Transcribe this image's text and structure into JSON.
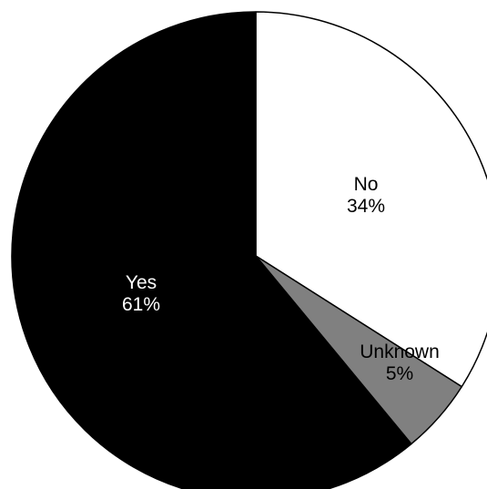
{
  "chart_data": {
    "type": "pie",
    "title": "",
    "start": "top",
    "direction": "clockwise",
    "slices": [
      {
        "label": "No",
        "value": 34,
        "percent_label": "34%",
        "color": "#ffffff",
        "text_color": "#000000"
      },
      {
        "label": "Unknown",
        "value": 5,
        "percent_label": "5%",
        "color": "#808080",
        "text_color": "#000000"
      },
      {
        "label": "Yes",
        "value": 61,
        "percent_label": "61%",
        "color": "#000000",
        "text_color": "#ffffff"
      }
    ]
  }
}
